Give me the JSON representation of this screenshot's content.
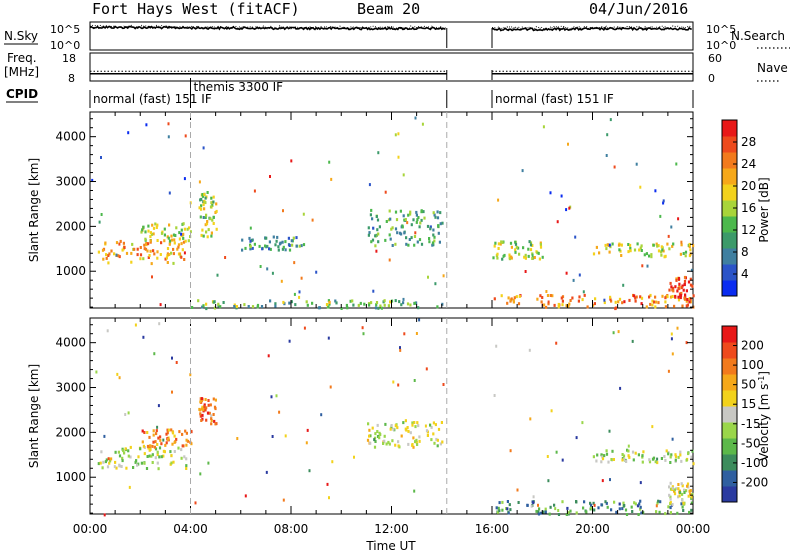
{
  "header": {
    "radar": "Fort Hays West (fitACF)",
    "beam": "Beam 20",
    "date": "04/Jun/2016"
  },
  "chart_data": [
    {
      "type": "line",
      "panel": "noise",
      "left_label": "N.Sky",
      "right_label": "N.Search",
      "left_ticks": [
        "10^5",
        "10^0"
      ],
      "right_ticks": [
        "10^5",
        "10^0"
      ],
      "x": [
        0,
        2,
        4,
        6,
        8,
        10,
        12,
        14.2,
        16,
        18,
        20,
        22,
        24
      ],
      "series": [
        {
          "values": [
            100000,
            90000,
            70000,
            60000,
            55000,
            52000,
            50000,
            48000,
            30000,
            32000,
            40000,
            42000,
            44000
          ]
        },
        {
          "values": [
            150000,
            120000,
            100000,
            95000,
            90000,
            88000,
            86000,
            80000,
            60000,
            70000,
            80000,
            90000,
            95000
          ]
        }
      ],
      "gaps": [
        [
          14.2,
          16
        ]
      ]
    },
    {
      "type": "line",
      "panel": "frequency",
      "left_label_lines": [
        "Freq.",
        "[MHz]"
      ],
      "right_label": "Nave",
      "left_ticks": [
        "18",
        "8"
      ],
      "right_ticks": [
        "60",
        "0"
      ],
      "x": [
        0,
        4,
        8,
        12,
        14.2,
        16,
        20,
        24
      ],
      "series": [
        {
          "values": [
            10.5,
            10.5,
            10.5,
            10.5,
            10.5,
            10.5,
            10.5,
            10.5
          ]
        },
        {
          "values": [
            11.5,
            11.5,
            11.5,
            11.5,
            11.5,
            11.5,
            11.5,
            11.5
          ]
        }
      ],
      "gaps": [
        [
          14.2,
          16
        ]
      ]
    },
    {
      "type": "table",
      "panel": "cpid",
      "label": "CPID",
      "segments": [
        {
          "start": 0,
          "end": 14.2,
          "label": "normal (fast) 151 IF"
        },
        {
          "start": 4.0,
          "end": 14.2,
          "label": "themis 3300 IF"
        },
        {
          "start": 16,
          "end": 24,
          "label": "normal (fast) 151 IF"
        }
      ]
    },
    {
      "type": "heatmap",
      "panel": "power",
      "ylabel": "Slant Range [km]",
      "ylim": [
        180,
        4550
      ],
      "yticks": [
        1000,
        2000,
        3000,
        4000
      ],
      "xlim": [
        0,
        24
      ],
      "colorbar": {
        "label": "Power [dB]",
        "ticks": [
          "4",
          "8",
          "12",
          "16",
          "20",
          "24",
          "28"
        ],
        "colors": [
          "#0a2cf0",
          "#2b54c8",
          "#3f7fa0",
          "#3c9a6a",
          "#4cb84c",
          "#a8d43a",
          "#f3d21c",
          "#f6a81a",
          "#f27a1c",
          "#ee4a1c",
          "#e81818"
        ]
      },
      "regions": [
        {
          "t": [
            0.3,
            3.8
          ],
          "r": [
            1200,
            1700
          ],
          "level": 0.7
        },
        {
          "t": [
            2.0,
            4.0
          ],
          "r": [
            1700,
            2100
          ],
          "level": 0.55
        },
        {
          "t": [
            4.3,
            5.0
          ],
          "r": [
            1800,
            2800
          ],
          "level": 0.5
        },
        {
          "t": [
            6.0,
            8.5
          ],
          "r": [
            1500,
            1800
          ],
          "level": 0.3
        },
        {
          "t": [
            11.0,
            14.0
          ],
          "r": [
            1600,
            2400
          ],
          "level": 0.35
        },
        {
          "t": [
            4.0,
            14.0
          ],
          "r": [
            200,
            380
          ],
          "level": 0.4
        },
        {
          "t": [
            16.0,
            18.0
          ],
          "r": [
            1300,
            1700
          ],
          "level": 0.5
        },
        {
          "t": [
            16.0,
            24.0
          ],
          "r": [
            200,
            500
          ],
          "level": 0.75
        },
        {
          "t": [
            20.0,
            24.0
          ],
          "r": [
            1350,
            1650
          ],
          "level": 0.55
        },
        {
          "t": [
            23.0,
            24.0
          ],
          "r": [
            400,
            900
          ],
          "level": 0.9
        }
      ]
    },
    {
      "type": "heatmap",
      "panel": "velocity",
      "ylabel": "Slant Range [km]",
      "xlabel": "Time UT",
      "ylim": [
        180,
        4550
      ],
      "yticks": [
        1000,
        2000,
        3000,
        4000
      ],
      "xlim": [
        0,
        24
      ],
      "xticks": [
        {
          "v": 0,
          "l": "00:00"
        },
        {
          "v": 4,
          "l": "04:00"
        },
        {
          "v": 8,
          "l": "08:00"
        },
        {
          "v": 12,
          "l": "12:00"
        },
        {
          "v": 16,
          "l": "16:00"
        },
        {
          "v": 20,
          "l": "20:00"
        },
        {
          "v": 24,
          "l": "00:00"
        }
      ],
      "colorbar": {
        "label": "Velocity [m s-1]",
        "ticks": [
          "200",
          "100",
          "50",
          "15",
          "-15",
          "-50",
          "-100",
          "-200"
        ],
        "colors": [
          "#2a3aa0",
          "#2f5fa0",
          "#3c8c5c",
          "#5cb84a",
          "#9ad64a",
          "#c8c8c4",
          "#f2d21c",
          "#f5a81a",
          "#f27a1c",
          "#ee4a1c",
          "#e81818"
        ]
      },
      "regions": [
        {
          "t": [
            0.3,
            3.8
          ],
          "r": [
            1200,
            1700
          ],
          "level": 0.45
        },
        {
          "t": [
            2.0,
            4.0
          ],
          "r": [
            1700,
            2100
          ],
          "level": 0.75
        },
        {
          "t": [
            4.3,
            5.0
          ],
          "r": [
            2200,
            2800
          ],
          "level": 0.8
        },
        {
          "t": [
            11.0,
            14.0
          ],
          "r": [
            1700,
            2300
          ],
          "level": 0.5
        },
        {
          "t": [
            16.0,
            24.0
          ],
          "r": [
            200,
            500
          ],
          "level": 0.25
        },
        {
          "t": [
            20.0,
            24.0
          ],
          "r": [
            1350,
            1650
          ],
          "level": 0.45
        },
        {
          "t": [
            23.0,
            24.0
          ],
          "r": [
            400,
            900
          ],
          "level": 0.5
        }
      ]
    }
  ],
  "markers": {
    "dashed_times": [
      4.0,
      14.2
    ]
  }
}
